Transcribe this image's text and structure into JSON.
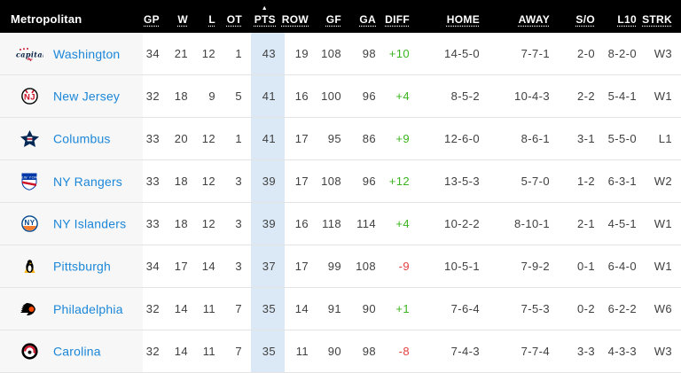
{
  "division": "Metropolitan",
  "sort": {
    "column": "pts",
    "indicator": "▲"
  },
  "columns": [
    {
      "key": "gp",
      "label": "GP"
    },
    {
      "key": "w",
      "label": "W"
    },
    {
      "key": "l",
      "label": "L"
    },
    {
      "key": "ot",
      "label": "OT"
    },
    {
      "key": "pts",
      "label": "PTS"
    },
    {
      "key": "row",
      "label": "ROW"
    },
    {
      "key": "gf",
      "label": "GF"
    },
    {
      "key": "ga",
      "label": "GA"
    },
    {
      "key": "diff",
      "label": "DIFF"
    },
    {
      "key": "home",
      "label": "HOME"
    },
    {
      "key": "away",
      "label": "AWAY"
    },
    {
      "key": "so",
      "label": "S/O"
    },
    {
      "key": "l10",
      "label": "L10"
    },
    {
      "key": "strk",
      "label": "STRK"
    }
  ],
  "teams": [
    {
      "name": "Washington",
      "logo": "capitals",
      "gp": "34",
      "w": "21",
      "l": "12",
      "ot": "1",
      "pts": "43",
      "row": "19",
      "gf": "108",
      "ga": "98",
      "diff": "+10",
      "home": "14-5-0",
      "away": "7-7-1",
      "so": "2-0",
      "l10": "8-2-0",
      "strk": "W3"
    },
    {
      "name": "New Jersey",
      "logo": "devils",
      "gp": "32",
      "w": "18",
      "l": "9",
      "ot": "5",
      "pts": "41",
      "row": "16",
      "gf": "100",
      "ga": "96",
      "diff": "+4",
      "home": "8-5-2",
      "away": "10-4-3",
      "so": "2-2",
      "l10": "5-4-1",
      "strk": "W1"
    },
    {
      "name": "Columbus",
      "logo": "blue-jackets",
      "gp": "33",
      "w": "20",
      "l": "12",
      "ot": "1",
      "pts": "41",
      "row": "17",
      "gf": "95",
      "ga": "86",
      "diff": "+9",
      "home": "12-6-0",
      "away": "8-6-1",
      "so": "3-1",
      "l10": "5-5-0",
      "strk": "L1"
    },
    {
      "name": "NY Rangers",
      "logo": "rangers",
      "gp": "33",
      "w": "18",
      "l": "12",
      "ot": "3",
      "pts": "39",
      "row": "17",
      "gf": "108",
      "ga": "96",
      "diff": "+12",
      "home": "13-5-3",
      "away": "5-7-0",
      "so": "1-2",
      "l10": "6-3-1",
      "strk": "W2"
    },
    {
      "name": "NY Islanders",
      "logo": "islanders",
      "gp": "33",
      "w": "18",
      "l": "12",
      "ot": "3",
      "pts": "39",
      "row": "16",
      "gf": "118",
      "ga": "114",
      "diff": "+4",
      "home": "10-2-2",
      "away": "8-10-1",
      "so": "2-1",
      "l10": "4-5-1",
      "strk": "W1"
    },
    {
      "name": "Pittsburgh",
      "logo": "penguins",
      "gp": "34",
      "w": "17",
      "l": "14",
      "ot": "3",
      "pts": "37",
      "row": "17",
      "gf": "99",
      "ga": "108",
      "diff": "-9",
      "home": "10-5-1",
      "away": "7-9-2",
      "so": "0-1",
      "l10": "6-4-0",
      "strk": "W1"
    },
    {
      "name": "Philadelphia",
      "logo": "flyers",
      "gp": "32",
      "w": "14",
      "l": "11",
      "ot": "7",
      "pts": "35",
      "row": "14",
      "gf": "91",
      "ga": "90",
      "diff": "+1",
      "home": "7-6-4",
      "away": "7-5-3",
      "so": "0-2",
      "l10": "6-2-2",
      "strk": "W6"
    },
    {
      "name": "Carolina",
      "logo": "hurricanes",
      "gp": "32",
      "w": "14",
      "l": "11",
      "ot": "7",
      "pts": "35",
      "row": "11",
      "gf": "90",
      "ga": "98",
      "diff": "-8",
      "home": "7-4-3",
      "away": "7-7-4",
      "so": "3-3",
      "l10": "4-3-3",
      "strk": "W3"
    }
  ],
  "colors": {
    "header_bg": "#000000",
    "header_text": "#ffffff",
    "team_link": "#1c87d8",
    "team_col_bg": "#f7f7f7",
    "pts_col_bg": "#dbe9f7",
    "positive_diff": "#3cb41f",
    "negative_diff": "#e44141",
    "cell_text": "#404040",
    "row_border": "#e4e4e4"
  }
}
